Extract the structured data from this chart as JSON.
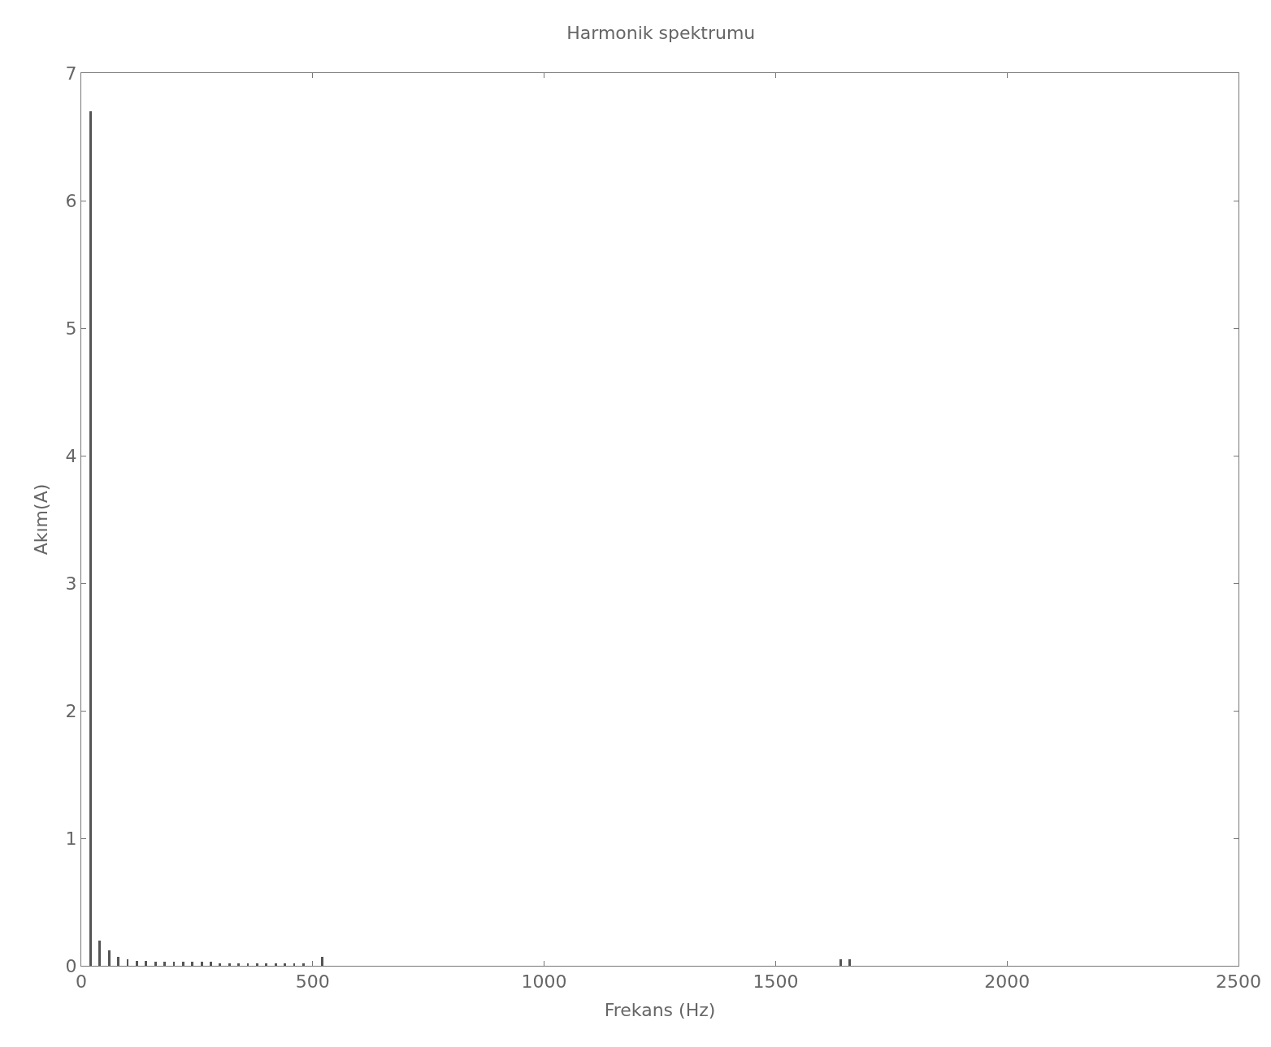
{
  "chart_data": {
    "type": "bar",
    "title": "Harmonik spektrumu",
    "xlabel": "Frekans (Hz)",
    "ylabel": "Akım(A)",
    "x": [
      20,
      40,
      60,
      80,
      100,
      120,
      140,
      160,
      180,
      200,
      220,
      240,
      260,
      280,
      300,
      320,
      340,
      360,
      380,
      400,
      420,
      440,
      460,
      480,
      520,
      1640,
      1660
    ],
    "series": [
      {
        "color": "#555555",
        "values": [
          6.7,
          0.2,
          0.12,
          0.07,
          0.05,
          0.04,
          0.04,
          0.03,
          0.03,
          0.03,
          0.03,
          0.03,
          0.03,
          0.03,
          0.02,
          0.02,
          0.02,
          0.02,
          0.02,
          0.02,
          0.02,
          0.02,
          0.02,
          0.02,
          0.07,
          0.05,
          0.05
        ]
      }
    ],
    "xlim": [
      0,
      2500
    ],
    "xticks": [
      0,
      500,
      1000,
      1500,
      2000,
      2500
    ],
    "ylim": [
      0,
      7
    ],
    "yticks": [
      0,
      1,
      2,
      3,
      4,
      5,
      6,
      7
    ]
  }
}
